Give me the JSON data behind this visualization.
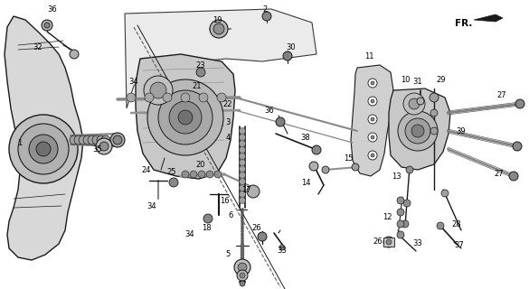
{
  "bg_color": "#f0f0f0",
  "fig_width": 5.85,
  "fig_height": 3.2,
  "dpi": 100,
  "line_color": "#1a1a1a",
  "label_fontsize": 6.0,
  "gray_light": "#c8c8c8",
  "gray_mid": "#a0a0a0",
  "gray_dark": "#606060",
  "gray_body": "#b8b8b8"
}
